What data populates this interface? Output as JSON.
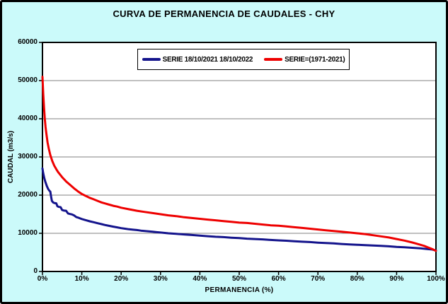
{
  "chart": {
    "background_color": "#CBFAFA",
    "plot_background": "#FFFFFF",
    "gridline_color": "#808080",
    "axis_color": "#000000"
  },
  "chart_data": {
    "type": "line",
    "title": "CURVA DE PERMANENCIA DE CAUDALES - CHY",
    "xlabel": "PERMANENCIA (%)",
    "ylabel": "CAUDAL (m3/s)",
    "xlim": [
      0,
      100
    ],
    "ylim": [
      0,
      60000
    ],
    "x_tick_step_percent": 10,
    "y_tick_step": 10000,
    "x_tick_labels": [
      "0%",
      "10%",
      "20%",
      "30%",
      "40%",
      "50%",
      "60%",
      "70%",
      "80%",
      "90%",
      "100%"
    ],
    "y_tick_labels": [
      "0",
      "10000",
      "20000",
      "30000",
      "40000",
      "50000",
      "60000"
    ],
    "grid": "horizontal-only",
    "legend_position": "top-center",
    "series": [
      {
        "name": "SERIE 18/10/2021 18/10/2022",
        "color": "#14148C",
        "points": [
          [
            0,
            27000
          ],
          [
            0.15,
            26000
          ],
          [
            0.3,
            25200
          ],
          [
            0.5,
            24300
          ],
          [
            0.7,
            23600
          ],
          [
            0.9,
            23000
          ],
          [
            1.1,
            22400
          ],
          [
            1.4,
            21700
          ],
          [
            1.7,
            21200
          ],
          [
            2,
            20900
          ],
          [
            2.2,
            19600
          ],
          [
            2.4,
            18500
          ],
          [
            2.7,
            18100
          ],
          [
            3,
            17950
          ],
          [
            3.5,
            17850
          ],
          [
            3.8,
            17100
          ],
          [
            4.2,
            16900
          ],
          [
            4.6,
            16850
          ],
          [
            5,
            16100
          ],
          [
            5.5,
            15950
          ],
          [
            6,
            15900
          ],
          [
            6.5,
            15200
          ],
          [
            7,
            15050
          ],
          [
            7.5,
            14950
          ],
          [
            8,
            14700
          ],
          [
            8.6,
            14250
          ],
          [
            9.2,
            14050
          ],
          [
            10,
            13750
          ],
          [
            11,
            13450
          ],
          [
            12,
            13150
          ],
          [
            13,
            12900
          ],
          [
            14,
            12650
          ],
          [
            15,
            12400
          ],
          [
            16,
            12150
          ],
          [
            17,
            11950
          ],
          [
            18,
            11750
          ],
          [
            19,
            11550
          ],
          [
            20,
            11350
          ],
          [
            21,
            11200
          ],
          [
            22,
            11050
          ],
          [
            23,
            10950
          ],
          [
            24,
            10850
          ],
          [
            25,
            10700
          ],
          [
            26,
            10600
          ],
          [
            27,
            10500
          ],
          [
            28,
            10400
          ],
          [
            29,
            10300
          ],
          [
            30,
            10200
          ],
          [
            32,
            10000
          ],
          [
            34,
            9850
          ],
          [
            36,
            9700
          ],
          [
            38,
            9550
          ],
          [
            40,
            9400
          ],
          [
            42,
            9250
          ],
          [
            44,
            9100
          ],
          [
            46,
            9000
          ],
          [
            48,
            8850
          ],
          [
            50,
            8750
          ],
          [
            52,
            8600
          ],
          [
            54,
            8500
          ],
          [
            56,
            8400
          ],
          [
            58,
            8250
          ],
          [
            60,
            8150
          ],
          [
            62,
            8050
          ],
          [
            64,
            7900
          ],
          [
            66,
            7800
          ],
          [
            68,
            7700
          ],
          [
            70,
            7550
          ],
          [
            72,
            7450
          ],
          [
            74,
            7350
          ],
          [
            76,
            7200
          ],
          [
            78,
            7100
          ],
          [
            80,
            7000
          ],
          [
            82,
            6900
          ],
          [
            84,
            6800
          ],
          [
            86,
            6700
          ],
          [
            88,
            6600
          ],
          [
            90,
            6450
          ],
          [
            92,
            6350
          ],
          [
            94,
            6200
          ],
          [
            96,
            6050
          ],
          [
            98,
            5850
          ],
          [
            99,
            5750
          ],
          [
            100,
            5500
          ]
        ]
      },
      {
        "name": "SERIE=(1971-2021)",
        "color": "#EE0000",
        "points": [
          [
            0,
            51000
          ],
          [
            0.2,
            46500
          ],
          [
            0.4,
            43000
          ],
          [
            0.6,
            40000
          ],
          [
            0.8,
            37800
          ],
          [
            1,
            36000
          ],
          [
            1.3,
            33800
          ],
          [
            1.6,
            32200
          ],
          [
            2,
            30500
          ],
          [
            2.5,
            28900
          ],
          [
            3,
            27700
          ],
          [
            3.5,
            26800
          ],
          [
            4,
            26000
          ],
          [
            5,
            24700
          ],
          [
            6,
            23600
          ],
          [
            7,
            22700
          ],
          [
            8,
            21800
          ],
          [
            9,
            21000
          ],
          [
            10,
            20300
          ],
          [
            11,
            19800
          ],
          [
            12,
            19300
          ],
          [
            13,
            18900
          ],
          [
            14,
            18500
          ],
          [
            15,
            18100
          ],
          [
            16,
            17800
          ],
          [
            17,
            17500
          ],
          [
            18,
            17200
          ],
          [
            19,
            17000
          ],
          [
            20,
            16700
          ],
          [
            22,
            16300
          ],
          [
            24,
            15900
          ],
          [
            26,
            15600
          ],
          [
            28,
            15300
          ],
          [
            30,
            15000
          ],
          [
            32,
            14700
          ],
          [
            34,
            14500
          ],
          [
            36,
            14200
          ],
          [
            38,
            14000
          ],
          [
            40,
            13800
          ],
          [
            42,
            13600
          ],
          [
            44,
            13400
          ],
          [
            46,
            13200
          ],
          [
            48,
            13000
          ],
          [
            50,
            12800
          ],
          [
            52,
            12700
          ],
          [
            54,
            12500
          ],
          [
            56,
            12300
          ],
          [
            58,
            12100
          ],
          [
            60,
            12000
          ],
          [
            62,
            11800
          ],
          [
            64,
            11600
          ],
          [
            66,
            11400
          ],
          [
            68,
            11200
          ],
          [
            70,
            11000
          ],
          [
            72,
            10800
          ],
          [
            74,
            10600
          ],
          [
            76,
            10400
          ],
          [
            78,
            10200
          ],
          [
            80,
            10000
          ],
          [
            82,
            9800
          ],
          [
            84,
            9500
          ],
          [
            86,
            9200
          ],
          [
            88,
            8900
          ],
          [
            90,
            8500
          ],
          [
            92,
            8100
          ],
          [
            94,
            7600
          ],
          [
            95,
            7300
          ],
          [
            96,
            7000
          ],
          [
            97,
            6700
          ],
          [
            98,
            6300
          ],
          [
            99,
            5900
          ],
          [
            100,
            5400
          ]
        ]
      }
    ]
  }
}
